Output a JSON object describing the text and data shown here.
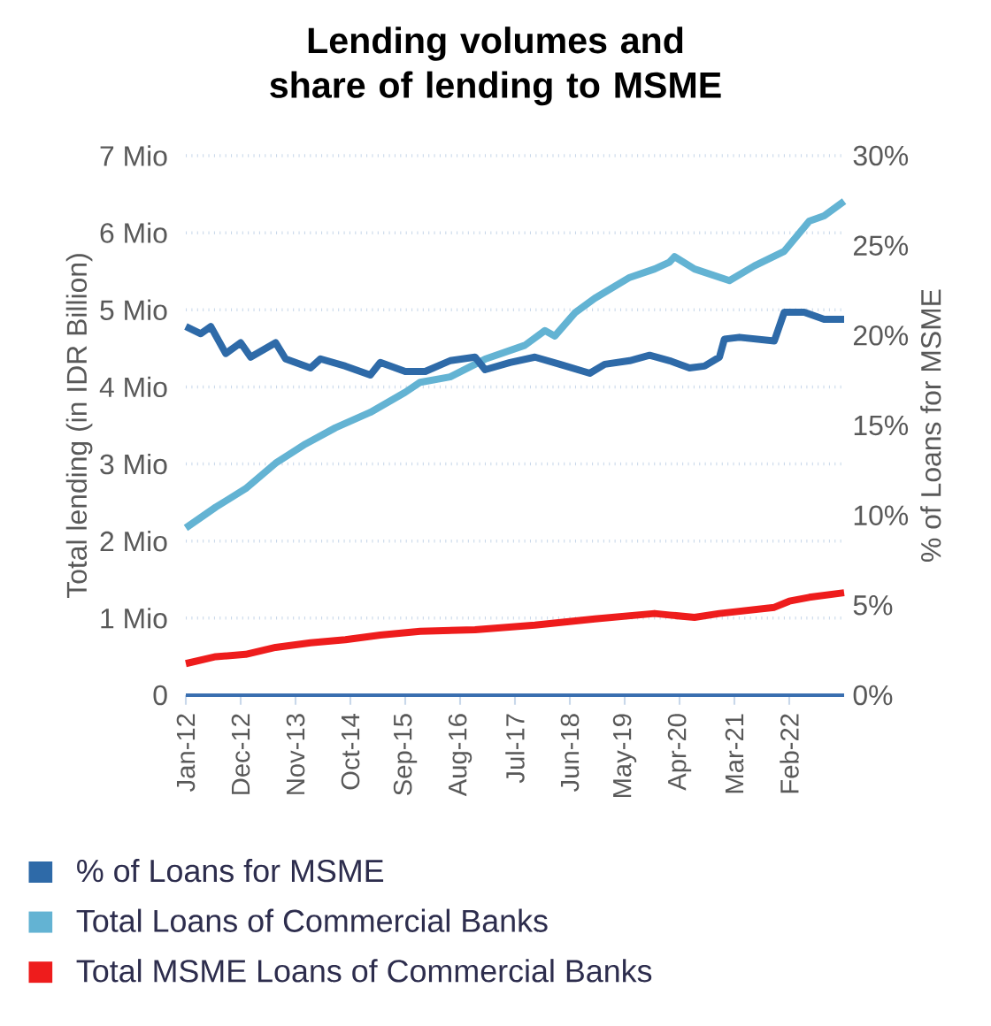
{
  "chart_data": {
    "type": "line",
    "title": "Lending volumes and share of lending to MSME",
    "ylabel": "Total lending (in IDR Billion)",
    "y2label": "% of Loans for MSME",
    "xlim": [
      "2012-01",
      "2023-01"
    ],
    "xticks": [
      {
        "value": "2012-01",
        "label": "Jan-12"
      },
      {
        "value": "2012-12",
        "label": "Dec-12"
      },
      {
        "value": "2013-11",
        "label": "Nov-13"
      },
      {
        "value": "2014-10",
        "label": "Oct-14"
      },
      {
        "value": "2015-09",
        "label": "Sep-15"
      },
      {
        "value": "2016-08",
        "label": "Aug-16"
      },
      {
        "value": "2017-07",
        "label": "Jul-17"
      },
      {
        "value": "2018-06",
        "label": "Jun-18"
      },
      {
        "value": "2019-05",
        "label": "May-19"
      },
      {
        "value": "2020-04",
        "label": "Apr-20"
      },
      {
        "value": "2021-03",
        "label": "Mar-21"
      },
      {
        "value": "2022-02",
        "label": "Feb-22"
      }
    ],
    "ylim": [
      0,
      7
    ],
    "yticks": [
      0,
      {
        "value": 1,
        "label": "1 Mio"
      },
      {
        "value": 2,
        "label": "2 Mio"
      },
      {
        "value": 3,
        "label": "3 Mio"
      },
      {
        "value": 4,
        "label": "4 Mio"
      },
      {
        "value": 5,
        "label": "5 Mio"
      },
      {
        "value": 6,
        "label": "6 Mio"
      },
      {
        "value": 7,
        "label": "7 Mio"
      }
    ],
    "y2lim": [
      0,
      30
    ],
    "y2ticks": [
      {
        "value": 0,
        "label": "0%"
      },
      {
        "value": 5,
        "label": "5%"
      },
      {
        "value": 10,
        "label": "10%"
      },
      {
        "value": 15,
        "label": "15%"
      },
      {
        "value": 20,
        "label": "20%"
      },
      {
        "value": 25,
        "label": "25%"
      },
      {
        "value": 30,
        "label": "30%"
      }
    ],
    "grid": "y",
    "legend": "bottom",
    "marker": "none",
    "line_style": "solid",
    "series": [
      {
        "name": "% of Loans for MSME",
        "color": "#2e6aa8",
        "axis": "y2",
        "x": [
          "2012-01",
          "2012-04",
          "2012-06",
          "2012-09",
          "2012-12",
          "2013-02",
          "2013-07",
          "2013-09",
          "2014-02",
          "2014-04",
          "2014-09",
          "2015-02",
          "2015-04",
          "2015-09",
          "2016-01",
          "2016-06",
          "2016-11",
          "2017-01",
          "2017-06",
          "2017-11",
          "2018-04",
          "2018-10",
          "2019-01",
          "2019-06",
          "2019-10",
          "2020-02",
          "2020-06",
          "2020-09",
          "2020-12",
          "2021-01",
          "2021-04",
          "2021-11",
          "2022-01",
          "2022-05",
          "2022-09",
          "2023-01"
        ],
        "values": [
          20.5,
          20.1,
          20.5,
          19.0,
          19.6,
          18.8,
          19.6,
          18.7,
          18.2,
          18.7,
          18.3,
          17.8,
          18.5,
          18.0,
          18.0,
          18.6,
          18.8,
          18.1,
          18.5,
          18.8,
          18.4,
          17.9,
          18.4,
          18.6,
          18.9,
          18.6,
          18.2,
          18.3,
          18.8,
          19.8,
          19.9,
          19.7,
          21.3,
          21.3,
          20.9,
          20.9
        ]
      },
      {
        "name": "Total Loans of Commercial Banks",
        "color": "#63b3d3",
        "x": [
          "2012-01",
          "2012-07",
          "2013-01",
          "2013-07",
          "2014-01",
          "2014-07",
          "2015-02",
          "2015-09",
          "2015-12",
          "2016-06",
          "2017-01",
          "2017-09",
          "2018-01",
          "2018-03",
          "2018-07",
          "2018-11",
          "2019-06",
          "2019-11",
          "2020-02",
          "2020-03",
          "2020-07",
          "2021-02",
          "2021-07",
          "2022-01",
          "2022-06",
          "2022-09",
          "2023-01"
        ],
        "values": [
          2.17,
          2.44,
          2.68,
          3.01,
          3.26,
          3.47,
          3.67,
          3.93,
          4.06,
          4.13,
          4.36,
          4.54,
          4.73,
          4.66,
          4.96,
          5.15,
          5.42,
          5.53,
          5.62,
          5.69,
          5.53,
          5.38,
          5.57,
          5.76,
          6.15,
          6.22,
          6.41
        ]
      },
      {
        "name": "Total MSME Loans of Commercial Banks",
        "color": "#ee1c1c",
        "x": [
          "2012-01",
          "2012-07",
          "2013-01",
          "2013-07",
          "2014-02",
          "2014-09",
          "2015-04",
          "2015-12",
          "2016-11",
          "2017-11",
          "2018-11",
          "2019-11",
          "2020-02",
          "2020-07",
          "2020-12",
          "2021-11",
          "2022-02",
          "2022-06",
          "2023-01"
        ],
        "values": [
          0.41,
          0.5,
          0.53,
          0.62,
          0.68,
          0.72,
          0.78,
          0.83,
          0.85,
          0.91,
          0.99,
          1.06,
          1.04,
          1.01,
          1.06,
          1.14,
          1.22,
          1.27,
          1.33
        ]
      }
    ]
  }
}
